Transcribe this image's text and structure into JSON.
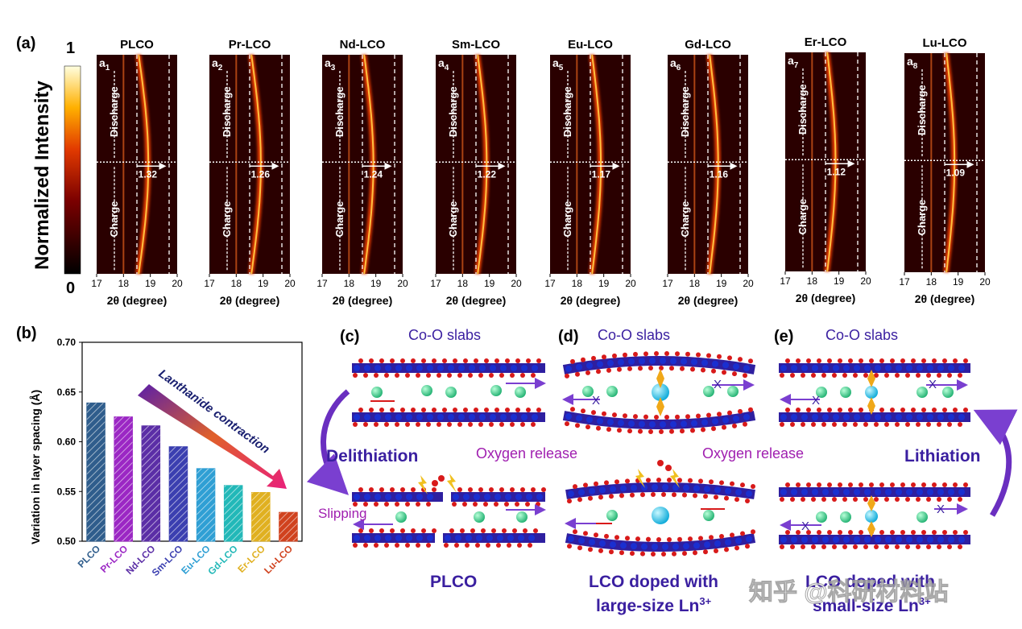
{
  "panel_a": {
    "label": "(a)",
    "colorbar": {
      "title": "Normalized Intensity",
      "max_label": "1",
      "min_label": "0"
    },
    "xlabel": "2θ (degree)",
    "x_ticks": [
      "17",
      "18",
      "19",
      "20"
    ],
    "discharge_label": "Discharge",
    "charge_label": "Charge",
    "subplots": [
      {
        "title": "PLCO",
        "sub": "a",
        "idx": "1",
        "value": "1.32"
      },
      {
        "title": "Pr-LCO",
        "sub": "a",
        "idx": "2",
        "value": "1.26"
      },
      {
        "title": "Nd-LCO",
        "sub": "a",
        "idx": "3",
        "value": "1.24"
      },
      {
        "title": "Sm-LCO",
        "sub": "a",
        "idx": "4",
        "value": "1.22"
      },
      {
        "title": "Eu-LCO",
        "sub": "a",
        "idx": "5",
        "value": "1.17"
      },
      {
        "title": "Gd-LCO",
        "sub": "a",
        "idx": "6",
        "value": "1.16"
      },
      {
        "title": "Er-LCO",
        "sub": "a",
        "idx": "7",
        "value": "1.12"
      },
      {
        "title": "Lu-LCO",
        "sub": "a",
        "idx": "8",
        "value": "1.09"
      }
    ]
  },
  "chart_data": {
    "type": "bar",
    "panel_label": "(b)",
    "categories": [
      "PLCO",
      "Pr-LCO",
      "Nd-LCO",
      "Sm-LCO",
      "Eu-LCO",
      "Gd-LCO",
      "Er-LCO",
      "Lu-LCO"
    ],
    "values": [
      0.639,
      0.625,
      0.616,
      0.595,
      0.573,
      0.556,
      0.549,
      0.529
    ],
    "ylabel": "Variation in layer spacing (Å)",
    "ylim": [
      0.5,
      0.7
    ],
    "y_ticks": [
      "0.50",
      "0.55",
      "0.60",
      "0.65",
      "0.70"
    ],
    "annotation": "Lanthanide contraction",
    "colors": [
      "#2f5d8c",
      "#9b27c4",
      "#5b2ea6",
      "#3b3fb0",
      "#2f9fd4",
      "#22b8b8",
      "#e0b020",
      "#d0421e"
    ]
  },
  "schematics": {
    "c_label": "(c)",
    "d_label": "(d)",
    "e_label": "(e)",
    "coo_slabs": "Co-O slabs",
    "delithiation": "Delithiation",
    "lithiation": "Lithiation",
    "oxygen_release": "Oxygen release",
    "slipping": "Slipping",
    "x_mark": "X",
    "c_caption": "PLCO",
    "d_caption_line1": "LCO doped with",
    "d_caption_line2": "large-size Ln",
    "d_caption_sup": "3+",
    "e_caption_line1": "LCO doped with",
    "e_caption_line2": "small-size Ln",
    "e_caption_sup": "3+"
  },
  "watermark": "知乎 @科研材料站",
  "colors": {
    "slab": "#2e1fa0",
    "ball": "#1a2fd0",
    "oxygen": "#d81a1a",
    "lithium": "#2fd08a",
    "dopant": "#14c8e8",
    "text_purple": "#3a1fa0",
    "text_magenta": "#a01fb0"
  }
}
